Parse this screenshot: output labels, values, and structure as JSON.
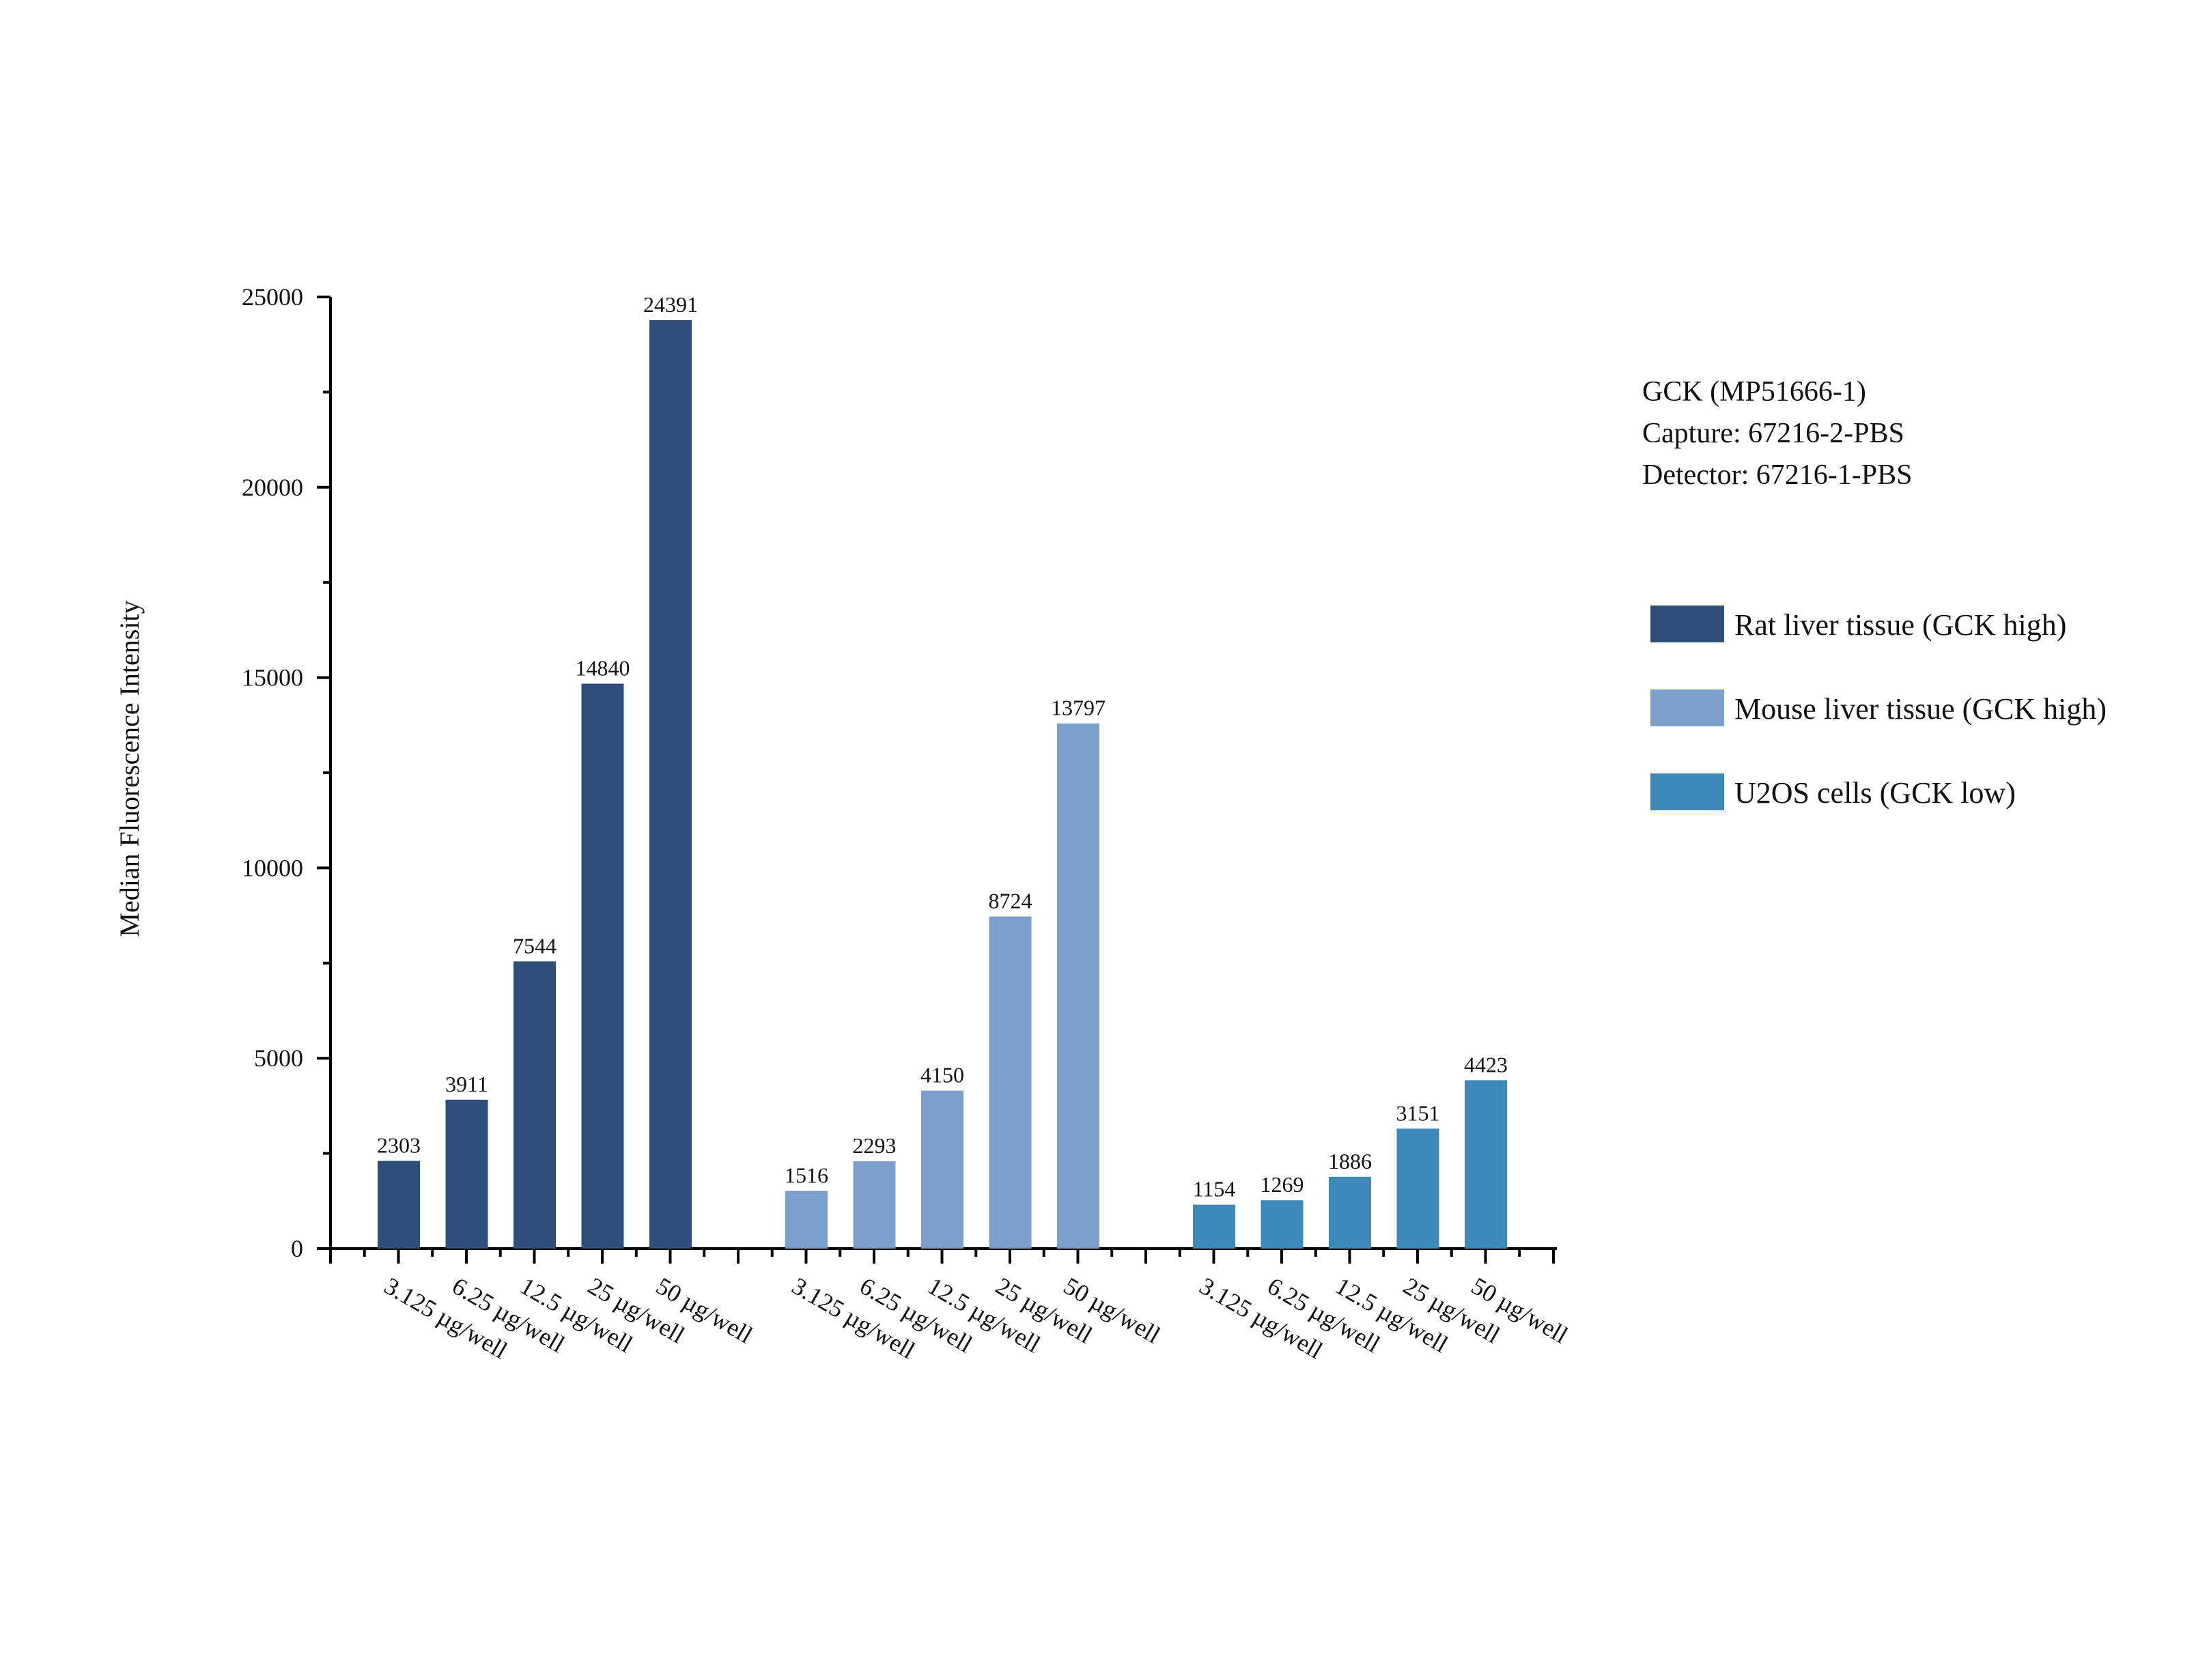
{
  "chart_data": {
    "type": "bar",
    "title": "",
    "xlabel": "",
    "ylabel": "Median Fluorescence Intensity",
    "ylim": [
      0,
      25000
    ],
    "yticks": [
      0,
      5000,
      10000,
      15000,
      20000,
      25000
    ],
    "ytick_labels": [
      "0",
      "5000",
      "10000",
      "15000",
      "20000",
      "25000"
    ],
    "grid": false,
    "legend_position": "right",
    "info_lines": [
      "GCK (MP51666-1)",
      "Capture: 67216-2-PBS",
      "Detector: 67216-1-PBS"
    ],
    "categories": [
      "3.125 µg/well",
      "6.25 µg/well",
      "12.5 µg/well",
      "25 µg/well",
      "50 µg/well"
    ],
    "series": [
      {
        "name": "Rat liver tissue (GCK high)",
        "color": "#2f4f7a",
        "values": [
          2303,
          3911,
          7544,
          14840,
          24391
        ]
      },
      {
        "name": "Mouse liver tissue (GCK high)",
        "color": "#7c9fcb",
        "values": [
          1516,
          2293,
          4150,
          8724,
          13797
        ]
      },
      {
        "name": "U2OS cells (GCK low)",
        "color": "#3d8aba",
        "values": [
          1154,
          1269,
          1886,
          3151,
          4423
        ]
      }
    ]
  }
}
